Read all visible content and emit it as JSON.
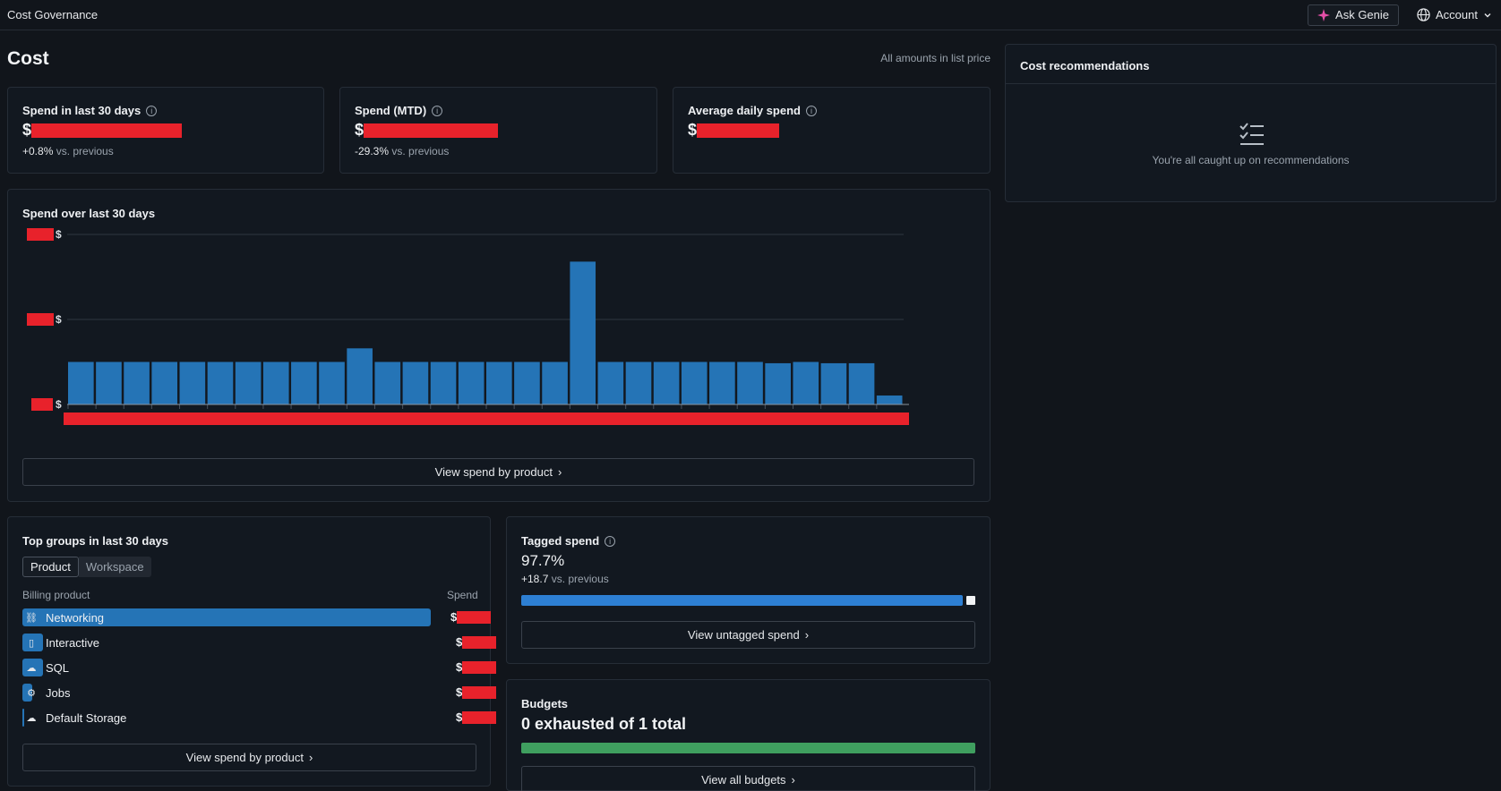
{
  "topbar": {
    "app_title": "Cost Governance",
    "ask_genie_label": "Ask Genie",
    "account_label": "Account"
  },
  "page": {
    "title": "Cost",
    "amounts_note": "All amounts in list price"
  },
  "metrics": [
    {
      "title": "Spend in last 30 days",
      "currency": "$",
      "delta": "+0.8%",
      "delta_suffix": "vs. previous"
    },
    {
      "title": "Spend (MTD)",
      "currency": "$",
      "delta": "-29.3%",
      "delta_suffix": "vs. previous"
    },
    {
      "title": "Average daily spend",
      "currency": "$"
    }
  ],
  "spend_chart": {
    "title": "Spend over last 30 days",
    "button_label": "View spend by product",
    "colors": {
      "bar": "#2574b6",
      "redaction": "#e8222b",
      "grid": "#2f363f"
    },
    "chart_data": {
      "type": "bar",
      "title": "Spend over last 30 days",
      "y_tick_labels": [
        "$",
        "$",
        "$"
      ],
      "values": [
        1.0,
        1.0,
        1.0,
        1.0,
        1.0,
        1.0,
        1.0,
        1.0,
        1.0,
        1.0,
        1.32,
        1.0,
        1.0,
        1.0,
        1.0,
        1.0,
        1.0,
        1.0,
        3.36,
        1.0,
        1.0,
        1.0,
        1.0,
        1.0,
        1.0,
        0.97,
        1.0,
        0.97,
        0.97,
        0.21
      ],
      "ylim": [
        0,
        4
      ],
      "grid": true,
      "legend": "none"
    }
  },
  "top_groups": {
    "title": "Top groups in last 30 days",
    "tabs": [
      {
        "label": "Product",
        "active": true
      },
      {
        "label": "Workspace",
        "active": false
      }
    ],
    "col_label": "Billing product",
    "col_spend": "Spend",
    "rows": [
      {
        "label": "Networking",
        "icon": "network-icon",
        "share": 1.0,
        "currency": "$"
      },
      {
        "label": "Interactive",
        "icon": "notebook-icon",
        "share": 0.05,
        "currency": "$"
      },
      {
        "label": "SQL",
        "icon": "cloud-sql-icon",
        "share": 0.05,
        "currency": "$"
      },
      {
        "label": "Jobs",
        "icon": "jobs-icon",
        "share": 0.025,
        "currency": "$"
      },
      {
        "label": "Default Storage",
        "icon": "storage-icon",
        "share": 0.005,
        "currency": "$"
      }
    ],
    "button_label": "View spend by product"
  },
  "tagged_spend": {
    "title": "Tagged spend",
    "value": "97.7%",
    "tagged_fraction": 0.977,
    "delta": "+18.7",
    "delta_suffix": "vs. previous",
    "button_label": "View untagged spend"
  },
  "budgets": {
    "title": "Budgets",
    "summary": "0 exhausted of 1 total",
    "bar_color": "#3f9f5f",
    "fill_fraction": 1.0,
    "button_label": "View all budgets"
  },
  "recommendations": {
    "title": "Cost recommendations",
    "empty_message": "You're all caught up on recommendations"
  }
}
